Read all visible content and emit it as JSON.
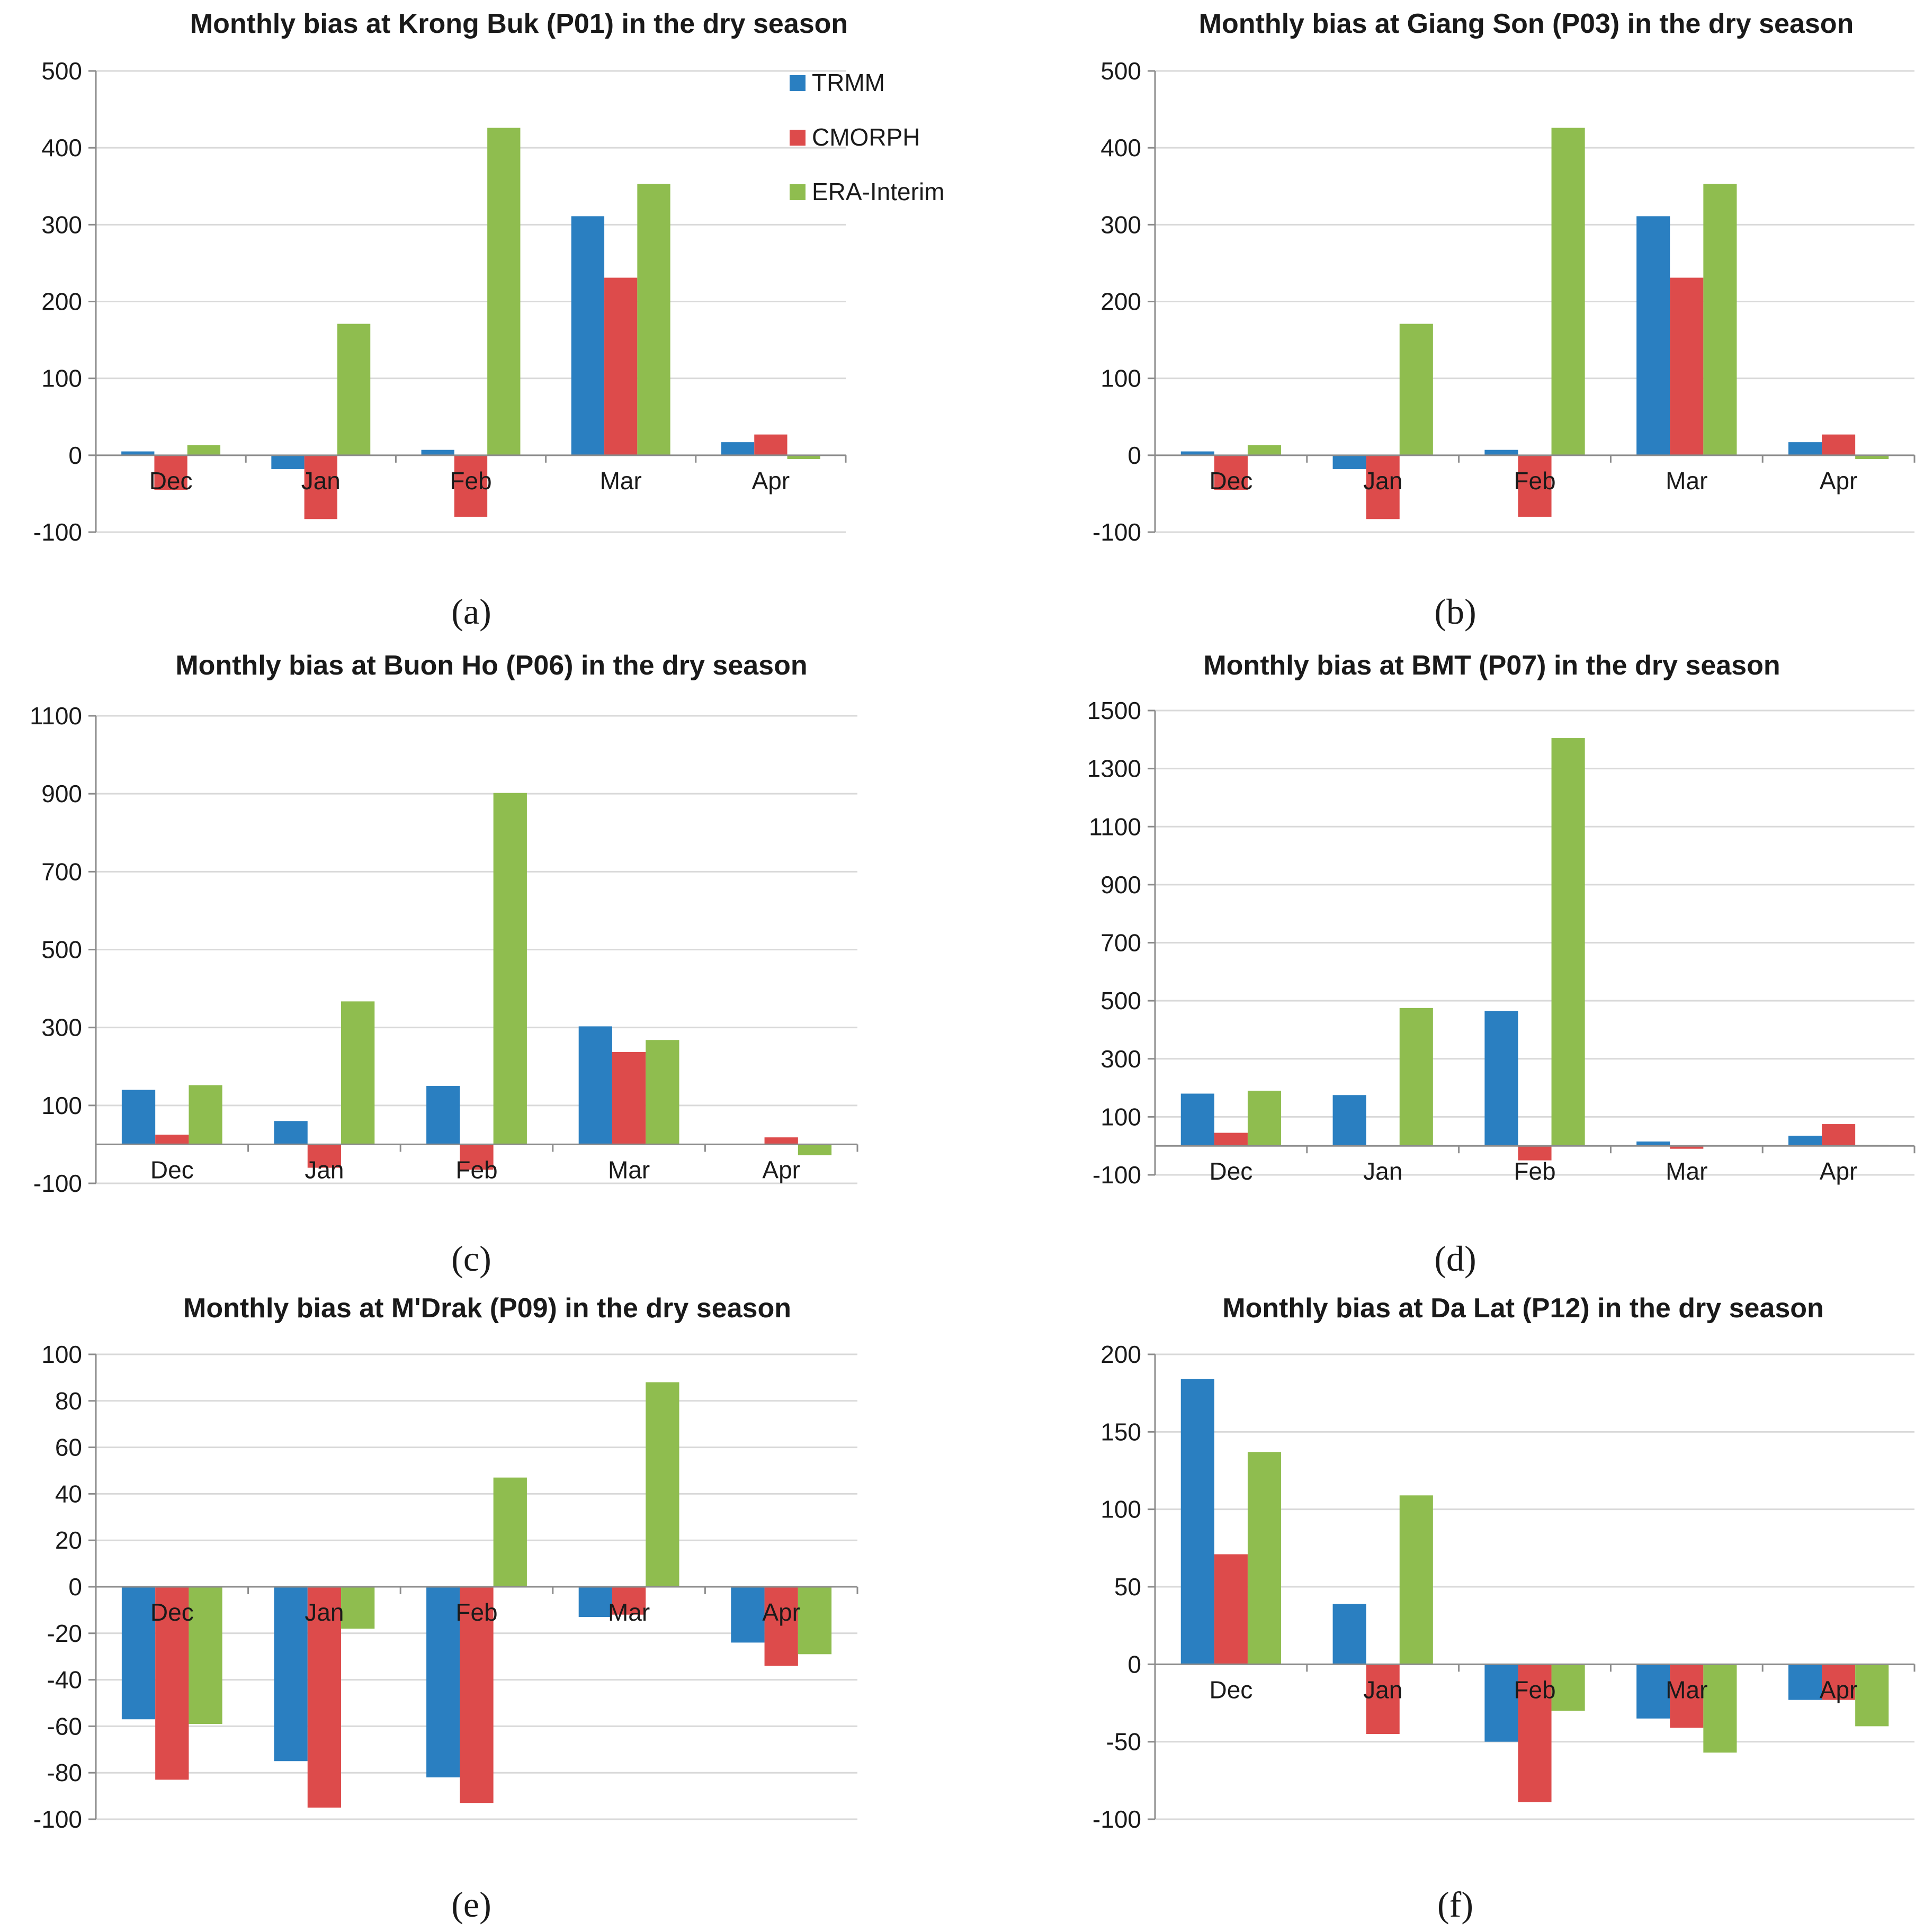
{
  "colors": {
    "TRMM": "#2a7fc1",
    "CMORPH": "#dd4b4b",
    "ERA-Interim": "#8fbd4f",
    "grid": "#d9d9d9",
    "axis": "#8c8c8c"
  },
  "legend": [
    "TRMM",
    "CMORPH",
    "ERA-Interim"
  ],
  "chart_data": [
    {
      "type": "bar",
      "panel_label": "(a)",
      "title": "Monthly bias at Krong Buk (P01) in the dry season",
      "categories": [
        "Dec",
        "Jan",
        "Feb",
        "Mar",
        "Apr"
      ],
      "series": [
        {
          "name": "TRMM",
          "values": [
            5,
            -18,
            7,
            311,
            17
          ]
        },
        {
          "name": "CMORPH",
          "values": [
            -45,
            -83,
            -80,
            231,
            27
          ]
        },
        {
          "name": "ERA-Interim",
          "values": [
            13,
            171,
            426,
            353,
            -5
          ]
        }
      ],
      "yticks": [
        -100,
        0,
        100,
        200,
        300,
        400,
        500
      ],
      "ylim": [
        -100,
        500
      ],
      "legend_shown": true
    },
    {
      "type": "bar",
      "panel_label": "(b)",
      "title": "Monthly bias at Giang Son (P03) in the dry season",
      "categories": [
        "Dec",
        "Jan",
        "Feb",
        "Mar",
        "Apr"
      ],
      "series": [
        {
          "name": "TRMM",
          "values": [
            5,
            -18,
            7,
            311,
            17
          ]
        },
        {
          "name": "CMORPH",
          "values": [
            -45,
            -83,
            -80,
            231,
            27
          ]
        },
        {
          "name": "ERA-Interim",
          "values": [
            13,
            171,
            426,
            353,
            -5
          ]
        }
      ],
      "yticks": [
        -100,
        0,
        100,
        200,
        300,
        400,
        500
      ],
      "ylim": [
        -100,
        500
      ],
      "legend_shown": false
    },
    {
      "type": "bar",
      "panel_label": "(c)",
      "title": "Monthly bias at Buon Ho (P06) in the dry season",
      "categories": [
        "Dec",
        "Jan",
        "Feb",
        "Mar",
        "Apr"
      ],
      "series": [
        {
          "name": "TRMM",
          "values": [
            140,
            60,
            150,
            303,
            0
          ]
        },
        {
          "name": "CMORPH",
          "values": [
            25,
            -60,
            -65,
            237,
            18
          ]
        },
        {
          "name": "ERA-Interim",
          "values": [
            152,
            367,
            902,
            268,
            -28
          ]
        }
      ],
      "yticks": [
        -100,
        100,
        300,
        500,
        700,
        900,
        1100
      ],
      "ylim": [
        -100,
        1100
      ],
      "legend_shown": false
    },
    {
      "type": "bar",
      "panel_label": "(d)",
      "title": "Monthly bias at BMT (P07) in the dry season",
      "categories": [
        "Dec",
        "Jan",
        "Feb",
        "Mar",
        "Apr"
      ],
      "series": [
        {
          "name": "TRMM",
          "values": [
            180,
            175,
            465,
            15,
            35
          ]
        },
        {
          "name": "CMORPH",
          "values": [
            45,
            0,
            -50,
            -10,
            75
          ]
        },
        {
          "name": "ERA-Interim",
          "values": [
            190,
            475,
            1405,
            0,
            3
          ]
        }
      ],
      "yticks": [
        -100,
        100,
        300,
        500,
        700,
        900,
        1100,
        1300,
        1500
      ],
      "ylim": [
        -100,
        1500
      ],
      "legend_shown": false
    },
    {
      "type": "bar",
      "panel_label": "(e)",
      "title": "Monthly bias at M'Drak (P09) in the dry season",
      "categories": [
        "Dec",
        "Jan",
        "Feb",
        "Mar",
        "Apr"
      ],
      "series": [
        {
          "name": "TRMM",
          "values": [
            -57,
            -75,
            -82,
            -13,
            -24
          ]
        },
        {
          "name": "CMORPH",
          "values": [
            -83,
            -95,
            -93,
            -12,
            -34
          ]
        },
        {
          "name": "ERA-Interim",
          "values": [
            -59,
            -18,
            47,
            88,
            -29
          ]
        }
      ],
      "yticks": [
        -100,
        -80,
        -60,
        -40,
        -20,
        0,
        20,
        40,
        60,
        80,
        100
      ],
      "ylim": [
        -100,
        100
      ],
      "legend_shown": false
    },
    {
      "type": "bar",
      "panel_label": "(f)",
      "title": "Monthly bias at Da Lat (P12) in the dry season",
      "categories": [
        "Dec",
        "Jan",
        "Feb",
        "Mar",
        "Apr"
      ],
      "series": [
        {
          "name": "TRMM",
          "values": [
            184,
            39,
            -50,
            -35,
            -23
          ]
        },
        {
          "name": "CMORPH",
          "values": [
            71,
            -45,
            -89,
            -41,
            -23
          ]
        },
        {
          "name": "ERA-Interim",
          "values": [
            137,
            109,
            -30,
            -57,
            -40
          ]
        }
      ],
      "yticks": [
        -100,
        -50,
        0,
        50,
        100,
        150,
        200
      ],
      "ylim": [
        -100,
        200
      ],
      "legend_shown": false
    }
  ]
}
